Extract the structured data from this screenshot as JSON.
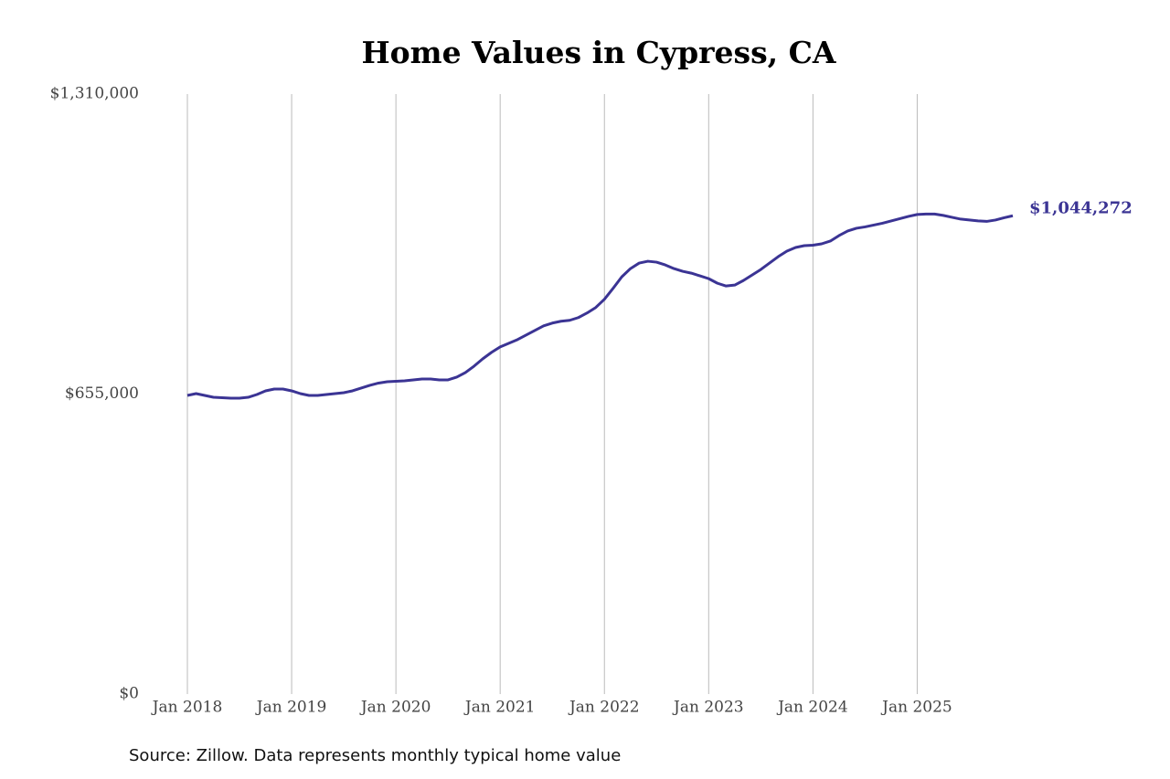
{
  "chart_data": {
    "type": "line",
    "title": "Home Values in Cypress, CA",
    "source": "Source: Zillow. Data represents monthly typical home value",
    "x": [
      "2018-01",
      "2018-02",
      "2018-03",
      "2018-04",
      "2018-05",
      "2018-06",
      "2018-07",
      "2018-08",
      "2018-09",
      "2018-10",
      "2018-11",
      "2018-12",
      "2019-01",
      "2019-02",
      "2019-03",
      "2019-04",
      "2019-05",
      "2019-06",
      "2019-07",
      "2019-08",
      "2019-09",
      "2019-10",
      "2019-11",
      "2019-12",
      "2020-01",
      "2020-02",
      "2020-03",
      "2020-04",
      "2020-05",
      "2020-06",
      "2020-07",
      "2020-08",
      "2020-09",
      "2020-10",
      "2020-11",
      "2020-12",
      "2021-01",
      "2021-02",
      "2021-03",
      "2021-04",
      "2021-05",
      "2021-06",
      "2021-07",
      "2021-08",
      "2021-09",
      "2021-10",
      "2021-11",
      "2021-12",
      "2022-01",
      "2022-02",
      "2022-03",
      "2022-04",
      "2022-05",
      "2022-06",
      "2022-07",
      "2022-08",
      "2022-09",
      "2022-10",
      "2022-11",
      "2022-12",
      "2023-01",
      "2023-02",
      "2023-03",
      "2023-04",
      "2023-05",
      "2023-06",
      "2023-07",
      "2023-08",
      "2023-09",
      "2023-10",
      "2023-11",
      "2023-12",
      "2024-01",
      "2024-02",
      "2024-03",
      "2024-04",
      "2024-05",
      "2024-06",
      "2024-07",
      "2024-08",
      "2024-09",
      "2024-10",
      "2024-11",
      "2024-12",
      "2025-01",
      "2025-02",
      "2025-03",
      "2025-04",
      "2025-05",
      "2025-06",
      "2025-07",
      "2025-08",
      "2025-09",
      "2025-10",
      "2025-11",
      "2025-12"
    ],
    "series": [
      {
        "name": "Typical home value",
        "color": "#3b3494",
        "values": [
          652000,
          656000,
          652000,
          648000,
          647000,
          646000,
          646000,
          648000,
          654000,
          662000,
          666000,
          666000,
          662000,
          656000,
          652000,
          652000,
          654000,
          656000,
          658000,
          662000,
          668000,
          674000,
          679000,
          682000,
          683000,
          684000,
          686000,
          688000,
          688000,
          686000,
          686000,
          692000,
          702000,
          716000,
          732000,
          746000,
          758000,
          766000,
          774000,
          784000,
          794000,
          804000,
          810000,
          814000,
          816000,
          822000,
          832000,
          844000,
          862000,
          886000,
          911000,
          929000,
          941000,
          945000,
          943000,
          937000,
          929000,
          923000,
          919000,
          913000,
          907000,
          897000,
          891000,
          893000,
          903000,
          915000,
          927000,
          941000,
          955000,
          967000,
          975000,
          979000,
          980000,
          983000,
          989000,
          1001000,
          1011000,
          1017000,
          1020000,
          1024000,
          1028000,
          1033000,
          1038000,
          1043000,
          1047000,
          1048000,
          1048000,
          1045000,
          1041000,
          1037000,
          1035000,
          1033000,
          1032000,
          1035000,
          1040000,
          1044272
        ],
        "value_labels": [
          null,
          null,
          null,
          null,
          null,
          null,
          null,
          null,
          null,
          null,
          null,
          null,
          null,
          null,
          null,
          null,
          null,
          null,
          null,
          null,
          null,
          null,
          null,
          null,
          null,
          null,
          null,
          null,
          null,
          null,
          null,
          null,
          null,
          null,
          null,
          null,
          null,
          null,
          null,
          null,
          null,
          null,
          null,
          null,
          null,
          null,
          null,
          null,
          null,
          null,
          null,
          null,
          null,
          null,
          null,
          null,
          null,
          null,
          null,
          null,
          null,
          null,
          null,
          null,
          null,
          null,
          null,
          null,
          null,
          null,
          null,
          null,
          null,
          null,
          null,
          null,
          null,
          null,
          null,
          null,
          null,
          null,
          null,
          null,
          null,
          null,
          null,
          null,
          null,
          null,
          null,
          null,
          null,
          null,
          null,
          "$1,044,272"
        ]
      }
    ],
    "xlim": [
      "2018-01",
      "2025-12"
    ],
    "xticks": [
      {
        "value": "2018-01",
        "label": "Jan 2018"
      },
      {
        "value": "2019-01",
        "label": "Jan 2019"
      },
      {
        "value": "2020-01",
        "label": "Jan 2020"
      },
      {
        "value": "2021-01",
        "label": "Jan 2021"
      },
      {
        "value": "2022-01",
        "label": "Jan 2022"
      },
      {
        "value": "2023-01",
        "label": "Jan 2023"
      },
      {
        "value": "2024-01",
        "label": "Jan 2024"
      },
      {
        "value": "2025-01",
        "label": "Jan 2025"
      }
    ],
    "ylim": [
      0,
      1310000
    ],
    "yticks": [
      {
        "value": 0,
        "label": "$0"
      },
      {
        "value": 655000,
        "label": "$655,000"
      },
      {
        "value": 1310000,
        "label": "$1,310,000"
      }
    ],
    "grid": "x"
  }
}
